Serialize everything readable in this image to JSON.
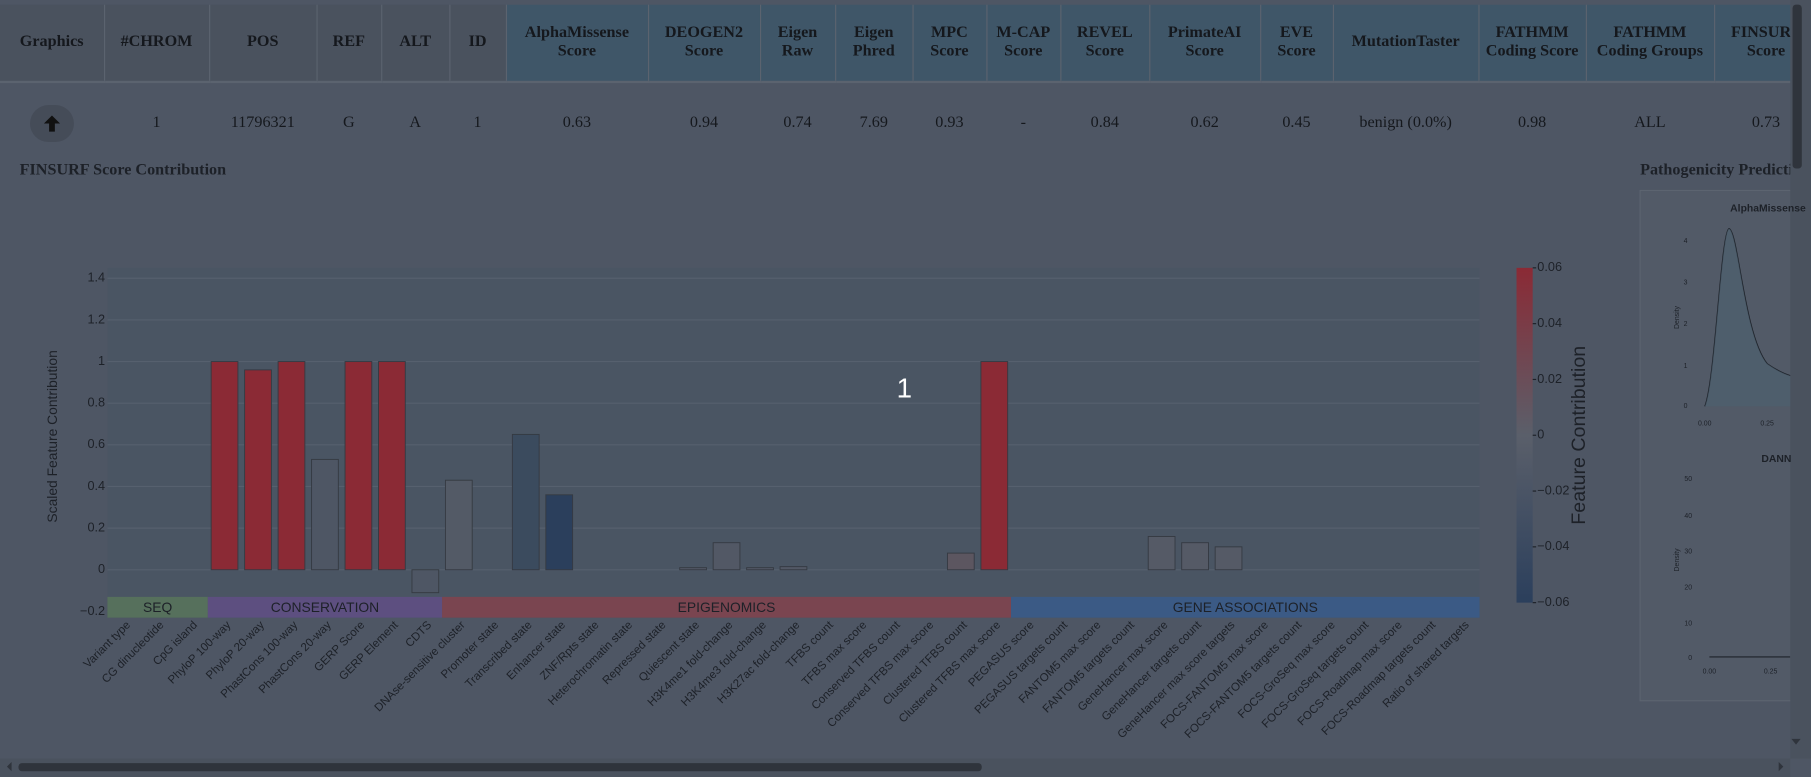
{
  "table": {
    "headers": [
      "Graphics",
      "#CHROM",
      "POS",
      "REF",
      "ALT",
      "ID",
      "AlphaMissense Score",
      "DEOGEN2 Score",
      "Eigen Raw",
      "Eigen Phred",
      "MPC Score",
      "M-CAP Score",
      "REVEL Score",
      "PrimateAI Score",
      "EVE Score",
      "MutationTaster",
      "FATHMM Coding Score",
      "FATHMM Coding Groups",
      "FINSURF Score"
    ],
    "rows": [
      [
        "1",
        "11796321",
        "G",
        "A",
        "1",
        "0.63",
        "0.94",
        "0.74",
        "7.69",
        "0.93",
        "-",
        "0.84",
        "0.62",
        "0.45",
        "benign (0.0%)",
        "0.98",
        "ALL",
        "0.73"
      ]
    ]
  },
  "section_title": "FINSURF Score Contribution",
  "overlay_label": "1",
  "chart_data": {
    "type": "bar",
    "y_label": "Scaled Feature Contribution",
    "categories": [
      "Variant type",
      "CG dinucleotide",
      "CpG island",
      "PhyloP 100-way",
      "PhyloP 20-way",
      "PhastCons 100-way",
      "PhastCons 20-way",
      "GERP Score",
      "GERP Element",
      "CDTS",
      "DNAse-sensitive cluster",
      "Promoter state",
      "Transcribed state",
      "Enhancer state",
      "ZNF/Rpts state",
      "Heterochromatin state",
      "Repressed state",
      "Quiescent state",
      "H3K4me1 fold-change",
      "H3K4me3 fold-change",
      "H3K27ac fold-change",
      "TFBS count",
      "TFBS max score",
      "Conserved TFBS count",
      "Conserved TFBS max score",
      "Clustered TFBS count",
      "Clustered TFBS max score",
      "PEGASUS score",
      "PEGASUS targets count",
      "FANTOM5 max score",
      "FANTOM5 targets count",
      "GeneHancer max score",
      "GeneHancer targets count",
      "GeneHancer max score targets",
      "FOCS-FANTOM5 max score",
      "FOCS-FANTOM5 targets count",
      "FOCS-GroSeq max score",
      "FOCS-GroSeq targets count",
      "FOCS-Roadmap max score",
      "FOCS-Roadmap targets count",
      "Ratio of shared targets"
    ],
    "values": [
      0,
      0,
      0,
      1,
      0.96,
      1,
      0.53,
      1,
      1,
      -0.11,
      0.43,
      0,
      0.65,
      0.36,
      0,
      0,
      0,
      0.01,
      0.13,
      0.01,
      0.015,
      0,
      0,
      0,
      0,
      0.08,
      1,
      0,
      0,
      0,
      0,
      0.16,
      0.13,
      0.11,
      0,
      0,
      0,
      0,
      0,
      0,
      0
    ],
    "colors": [
      "#4e5664",
      "#4e5664",
      "#4e5664",
      "#8b2a35",
      "#8b2a35",
      "#8b2a35",
      "#4e5664",
      "#8b2a35",
      "#8b2a35",
      "#4e5664",
      "#535a66",
      "#4e5664",
      "#3b4b5e",
      "#2b3f5c",
      "#4e5664",
      "#4e5664",
      "#4e5664",
      "#525865",
      "#525865",
      "#525865",
      "#525865",
      "#4e5664",
      "#4e5664",
      "#4e5664",
      "#4e5664",
      "#5c5660",
      "#8b2a35",
      "#4e5664",
      "#4e5664",
      "#4e5664",
      "#4e5664",
      "#555a66",
      "#555a66",
      "#555a66",
      "#4e5664",
      "#4e5664",
      "#4e5664",
      "#4e5664",
      "#4e5664",
      "#4e5664",
      "#4e5664"
    ],
    "ylim": [
      -0.23,
      1.45
    ],
    "yticks": [
      {
        "value": -0.2,
        "label": "−0.2"
      },
      0,
      0.2,
      0.4,
      0.6,
      0.8,
      1,
      1.2,
      1.4
    ],
    "grid": true,
    "groups": [
      {
        "name": "SEQ",
        "span": [
          0,
          2
        ],
        "color": "#56705c"
      },
      {
        "name": "CONSERVATION",
        "span": [
          3,
          9
        ],
        "color": "#5d4f80"
      },
      {
        "name": "EPIGENOMICS",
        "span": [
          10,
          26
        ],
        "color": "#7a4550"
      },
      {
        "name": "GENE ASSOCIATIONS",
        "span": [
          27,
          40
        ],
        "color": "#3b5a85"
      }
    ],
    "colorbar": {
      "title": "Feature Contribution",
      "lim": [
        -0.06,
        0.06
      ],
      "ticks": [
        {
          "value": -0.06,
          "label": "−0.06"
        },
        {
          "value": -0.04,
          "label": "−0.04"
        },
        {
          "value": -0.02,
          "label": "−0.02"
        },
        0,
        0.02,
        0.04,
        0.06
      ],
      "colors": [
        "#2b3f5c",
        "#5a5f6a",
        "#8b2a35"
      ]
    }
  },
  "side_panel": {
    "title": "Pathogenicity Predictions",
    "plots": [
      {
        "title": "AlphaMissense",
        "ylabel": "Density",
        "yticks": [
          "4",
          "3",
          "2",
          "1",
          "0"
        ],
        "xticks": [
          "0.00",
          "0.25"
        ]
      },
      {
        "title": "DANN",
        "ylabel": "Density",
        "yticks": [
          "50",
          "40",
          "30",
          "20",
          "10",
          "0"
        ],
        "xticks": [
          "0.00",
          "0.25"
        ]
      }
    ]
  }
}
